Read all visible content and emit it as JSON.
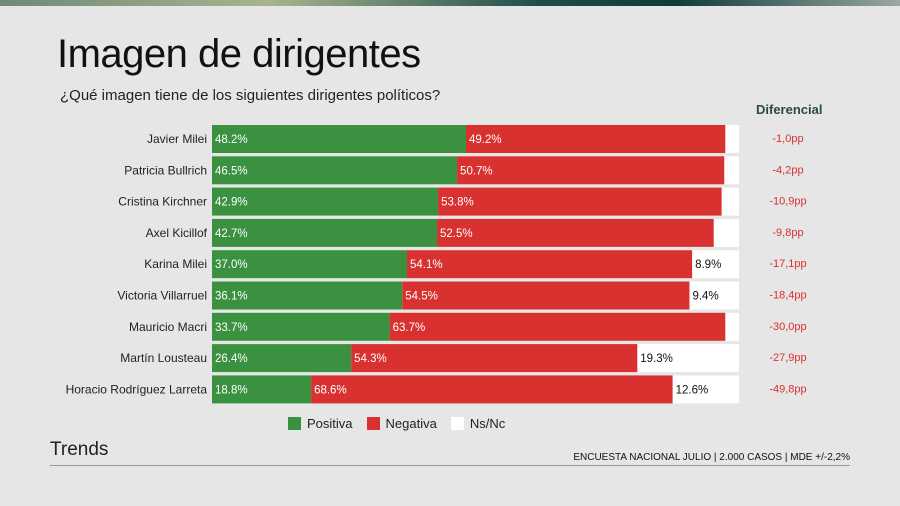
{
  "title": "Imagen de dirigentes",
  "subtitle": "¿Qué imagen tiene de los siguientes dirigentes políticos?",
  "diferencial_header": "Diferencial",
  "brand": "Trends",
  "footer": "ENCUESTA NACIONAL JULIO | 2.000 CASOS | MDE +/-2,2%",
  "chart_data": {
    "type": "bar",
    "orientation": "horizontal-stacked",
    "categories": [
      "Javier Milei",
      "Patricia Bullrich",
      "Cristina Kirchner",
      "Axel Kicillof",
      "Karina Milei",
      "Victoria Villarruel",
      "Mauricio Macri",
      "Martín Lousteau",
      "Horacio Rodríguez Larreta"
    ],
    "series": [
      {
        "name": "Positiva",
        "color": "#3a9140",
        "values": [
          48.2,
          46.5,
          42.9,
          42.7,
          37.0,
          36.1,
          33.7,
          26.4,
          18.8
        ]
      },
      {
        "name": "Negativa",
        "color": "#d8312f",
        "values": [
          49.2,
          50.7,
          53.8,
          52.5,
          54.1,
          54.5,
          63.7,
          54.3,
          68.6
        ]
      },
      {
        "name": "Ns/Nc",
        "color": "#ffffff",
        "values": [
          null,
          null,
          null,
          null,
          8.9,
          9.4,
          null,
          19.3,
          12.6
        ]
      }
    ],
    "diferencial": [
      "-1,0pp",
      "-4,2pp",
      "-10,9pp",
      "-9,8pp",
      "-17,1pp",
      "-18,4pp",
      "-30,0pp",
      "-27,9pp",
      "-49,8pp"
    ],
    "diferencial_color": "#d8312f",
    "xlim": [
      0,
      100
    ]
  }
}
